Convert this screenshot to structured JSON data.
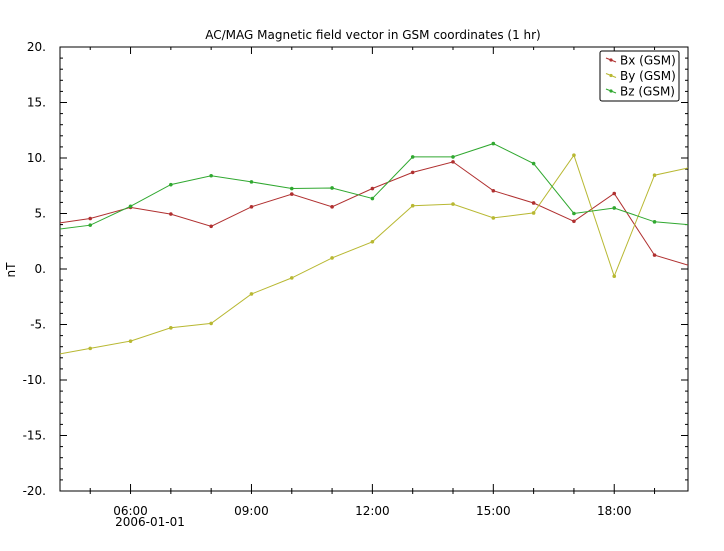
{
  "chart_data": {
    "type": "line",
    "title": "AC/MAG  Magnetic field vector in GSM coordinates (1 hr)",
    "ylabel": "nT",
    "xlabel": "",
    "ylim": [
      -20,
      20
    ],
    "xlim": [
      4.25,
      19.83
    ],
    "y_ticks": [
      20.0,
      15.0,
      10.0,
      5.0,
      0.0,
      -5.0,
      -10.0,
      -15.0,
      -20.0
    ],
    "y_tick_labels": [
      "20.",
      "15.",
      "10.",
      "5.",
      "0.",
      "-5.",
      "-10.",
      "-15.",
      "-20."
    ],
    "x_ticks": [
      6,
      9,
      12,
      15,
      18
    ],
    "x_tick_labels": [
      "06:00",
      "09:00",
      "12:00",
      "15:00",
      "18:00"
    ],
    "x_date_label": "2006-01-01",
    "legend_position": "top-right",
    "grid": false,
    "x": [
      5,
      6,
      7,
      8,
      9,
      10,
      11,
      12,
      13,
      14,
      15,
      16,
      17,
      18,
      19
    ],
    "series": [
      {
        "name": "Bx (GSM)",
        "color": "#b03030",
        "start": 4.15,
        "end": 0.35,
        "values": [
          4.55,
          5.55,
          4.95,
          3.85,
          5.6,
          6.75,
          5.6,
          7.25,
          8.7,
          9.65,
          7.05,
          5.95,
          4.3,
          6.8,
          1.25
        ]
      },
      {
        "name": "By (GSM)",
        "color": "#b8b832",
        "start": -7.65,
        "end": 9.1,
        "values": [
          -7.15,
          -6.5,
          -5.3,
          -4.9,
          -2.25,
          -0.8,
          1.0,
          2.45,
          5.7,
          5.85,
          4.6,
          5.05,
          10.25,
          -0.65,
          8.45
        ]
      },
      {
        "name": "Bz (GSM)",
        "color": "#30a830",
        "start": 3.6,
        "end": 4.0,
        "values": [
          3.95,
          5.65,
          7.6,
          8.4,
          7.85,
          7.25,
          7.3,
          6.35,
          10.1,
          10.1,
          11.3,
          9.5,
          5.0,
          5.5,
          4.25
        ]
      }
    ]
  }
}
